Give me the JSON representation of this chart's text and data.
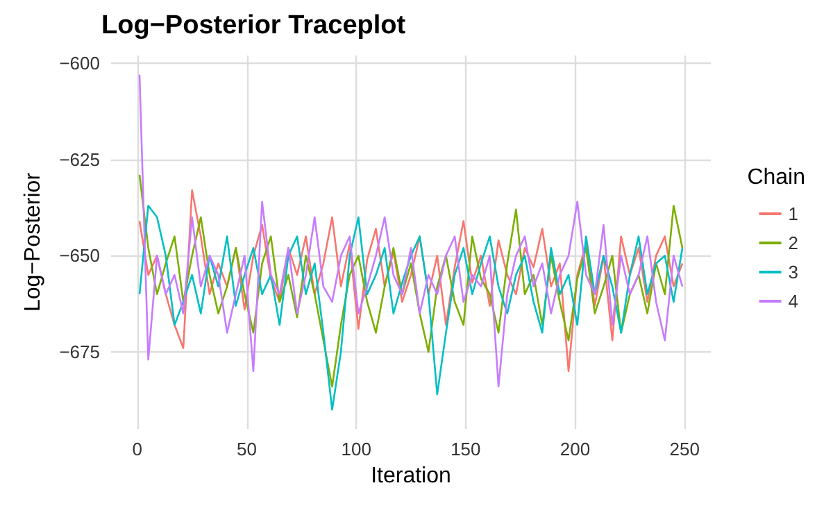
{
  "chart_data": {
    "type": "line",
    "title": "Log−Posterior Traceplot",
    "xlabel": "Iteration",
    "ylabel": "Log−Posterior",
    "legend_title": "Chain",
    "legend": "right",
    "grid": true,
    "marker": "none",
    "line_style": "solid",
    "xlim": [
      -12,
      262
    ],
    "xticks": [
      0,
      50,
      100,
      150,
      200,
      250
    ],
    "ylim": [
      -695,
      -598
    ],
    "yticks": [
      -600,
      -625,
      -650,
      -675
    ],
    "x": [
      1,
      5,
      9,
      13,
      17,
      21,
      25,
      29,
      33,
      37,
      41,
      45,
      49,
      53,
      57,
      61,
      65,
      69,
      73,
      77,
      81,
      85,
      89,
      93,
      97,
      101,
      105,
      109,
      113,
      117,
      121,
      125,
      129,
      133,
      137,
      141,
      145,
      149,
      153,
      157,
      161,
      165,
      169,
      173,
      177,
      181,
      185,
      189,
      193,
      197,
      201,
      205,
      209,
      213,
      217,
      221,
      225,
      229,
      233,
      237,
      241,
      245,
      249
    ],
    "series": [
      {
        "name": "1",
        "color": "#f8766d",
        "values": [
          -641,
          -655,
          -650,
          -660,
          -668,
          -674,
          -633,
          -645,
          -660,
          -652,
          -658,
          -648,
          -664,
          -650,
          -642,
          -656,
          -662,
          -648,
          -655,
          -645,
          -660,
          -652,
          -640,
          -658,
          -647,
          -669,
          -651,
          -643,
          -658,
          -649,
          -662,
          -655,
          -645,
          -660,
          -650,
          -668,
          -653,
          -641,
          -657,
          -650,
          -663,
          -646,
          -655,
          -660,
          -648,
          -653,
          -643,
          -658,
          -652,
          -680,
          -655,
          -647,
          -663,
          -650,
          -672,
          -645,
          -655,
          -648,
          -662,
          -650,
          -645,
          -658,
          -652
        ]
      },
      {
        "name": "2",
        "color": "#7cae00",
        "values": [
          -629,
          -648,
          -660,
          -652,
          -645,
          -662,
          -650,
          -640,
          -655,
          -665,
          -658,
          -648,
          -660,
          -670,
          -652,
          -645,
          -662,
          -655,
          -666,
          -650,
          -660,
          -672,
          -684,
          -668,
          -655,
          -650,
          -662,
          -670,
          -658,
          -648,
          -660,
          -652,
          -665,
          -675,
          -658,
          -650,
          -662,
          -668,
          -645,
          -656,
          -660,
          -670,
          -652,
          -638,
          -660,
          -655,
          -668,
          -650,
          -662,
          -672,
          -656,
          -648,
          -665,
          -658,
          -650,
          -670,
          -660,
          -655,
          -665,
          -652,
          -660,
          -637,
          -648
        ]
      },
      {
        "name": "3",
        "color": "#00bfc4",
        "values": [
          -660,
          -637,
          -640,
          -650,
          -668,
          -662,
          -655,
          -665,
          -650,
          -658,
          -645,
          -663,
          -655,
          -648,
          -660,
          -655,
          -668,
          -650,
          -645,
          -660,
          -652,
          -670,
          -690,
          -675,
          -650,
          -640,
          -660,
          -655,
          -648,
          -665,
          -657,
          -650,
          -645,
          -660,
          -686,
          -670,
          -655,
          -648,
          -660,
          -652,
          -645,
          -658,
          -665,
          -655,
          -650,
          -662,
          -670,
          -648,
          -660,
          -655,
          -668,
          -645,
          -660,
          -650,
          -658,
          -670,
          -655,
          -645,
          -660,
          -652,
          -650,
          -662,
          -648
        ]
      },
      {
        "name": "4",
        "color": "#c77cff",
        "values": [
          -603,
          -677,
          -650,
          -660,
          -655,
          -665,
          -640,
          -658,
          -650,
          -655,
          -670,
          -660,
          -650,
          -680,
          -636,
          -655,
          -660,
          -648,
          -665,
          -655,
          -640,
          -658,
          -662,
          -650,
          -645,
          -665,
          -658,
          -650,
          -640,
          -655,
          -660,
          -648,
          -665,
          -655,
          -660,
          -650,
          -645,
          -662,
          -655,
          -658,
          -650,
          -684,
          -660,
          -650,
          -645,
          -658,
          -652,
          -665,
          -655,
          -650,
          -636,
          -655,
          -660,
          -642,
          -668,
          -650,
          -660,
          -655,
          -645,
          -662,
          -672,
          -650,
          -658
        ]
      }
    ]
  }
}
